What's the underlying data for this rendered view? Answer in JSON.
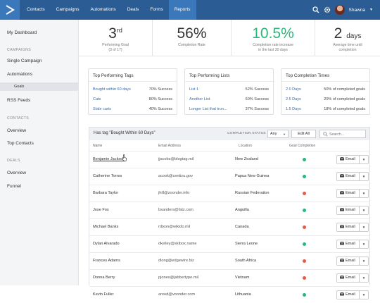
{
  "nav": {
    "items": [
      {
        "label": "Contacts",
        "active": false
      },
      {
        "label": "Campaigns",
        "active": false
      },
      {
        "label": "Automations",
        "active": false
      },
      {
        "label": "Deals",
        "active": false
      },
      {
        "label": "Forms",
        "active": false
      },
      {
        "label": "Reports",
        "active": true
      }
    ],
    "user_name": "Shawna"
  },
  "sidebar": {
    "dashboard": "My Dashboard",
    "campaigns_header": "CAMPAIGNS",
    "single_campaign": "Single Campaign",
    "automations": "Automations",
    "goals": "Goals",
    "rss_feeds": "RSS Feeds",
    "contacts_header": "CONTACTS",
    "contacts_overview": "Overview",
    "top_contacts": "Top Contacts",
    "deals_header": "DEALS",
    "deals_overview": "Overview",
    "funnel": "Funnel"
  },
  "stats": {
    "performing_goal": {
      "value": "3",
      "suffix": "rd",
      "label": "Performing Goal",
      "sub": "(3 of 17)"
    },
    "completion_rate": {
      "value": "56%",
      "label": "Completion Rate"
    },
    "completion_increase": {
      "value": "10.5%",
      "label": "Completion rate increase",
      "sub": "in the last 30 days"
    },
    "avg_time": {
      "value": "2",
      "unit": "days",
      "label": "Average time until",
      "sub": "completion"
    }
  },
  "cards": {
    "tags": {
      "title": "Top Performing Tags",
      "rows": [
        {
          "name": "Bought within 60 days",
          "value": "70% Success"
        },
        {
          "name": "Cats",
          "value": "80% Success"
        },
        {
          "name": "Stale carts",
          "value": "40% Success"
        }
      ]
    },
    "lists": {
      "title": "Top Performing Lists",
      "rows": [
        {
          "name": "List 1",
          "value": "52% Success"
        },
        {
          "name": "Another List",
          "value": "60% Success"
        },
        {
          "name": "Longer List that trun...",
          "value": "37% Success"
        }
      ]
    },
    "times": {
      "title": "Top Completion Times",
      "rows": [
        {
          "name": "2.0 Days",
          "value": "50% of completed goals"
        },
        {
          "name": "2.5 Days",
          "value": "20% of completed goals"
        },
        {
          "name": "1.5 Days",
          "value": "18% of completed goals"
        }
      ]
    }
  },
  "table": {
    "title": "Has tag \"Bought Within 60 Days\"",
    "status_label": "COMPLETION STATUS",
    "status_value": "Any",
    "edit_all": "Edit All",
    "search_placeholder": "Search...",
    "columns": {
      "name": "Name",
      "email": "Email Address",
      "location": "Location",
      "goal": "Goal Completion"
    },
    "email_btn": "Email",
    "colors": {
      "complete": "#2ab67c",
      "incomplete": "#e35a4a"
    },
    "rows": [
      {
        "name": "Benjamin Jackson",
        "email": "jjacobs@blogtag.mil",
        "location": "New Zealand",
        "complete": true
      },
      {
        "name": "Catherine Torres",
        "email": "acook@centizu.gov",
        "location": "Papua New Guinea",
        "complete": true
      },
      {
        "name": "Barbara Taylor",
        "email": "jhill@zoonder.info",
        "location": "Russian Federation",
        "complete": false
      },
      {
        "name": "Jose Fox",
        "email": "bsanders@fatz.com",
        "location": "Anguilla",
        "complete": true
      },
      {
        "name": "Michael Banks",
        "email": "rdixon@wikido.mil",
        "location": "Canada",
        "complete": false
      },
      {
        "name": "Dylan Alvarado",
        "email": "dkelley@skibox.name",
        "location": "Sierra Leone",
        "complete": true
      },
      {
        "name": "Frances Adams",
        "email": "dlong@edgewire.biz",
        "location": "South Africa",
        "complete": false
      },
      {
        "name": "Donna Berry",
        "email": "pjones@jabbertype.mil",
        "location": "Vietnam",
        "complete": false
      },
      {
        "name": "Kevin Fuller",
        "email": "areed@voonder.com",
        "location": "Lithuania",
        "complete": true
      }
    ]
  }
}
